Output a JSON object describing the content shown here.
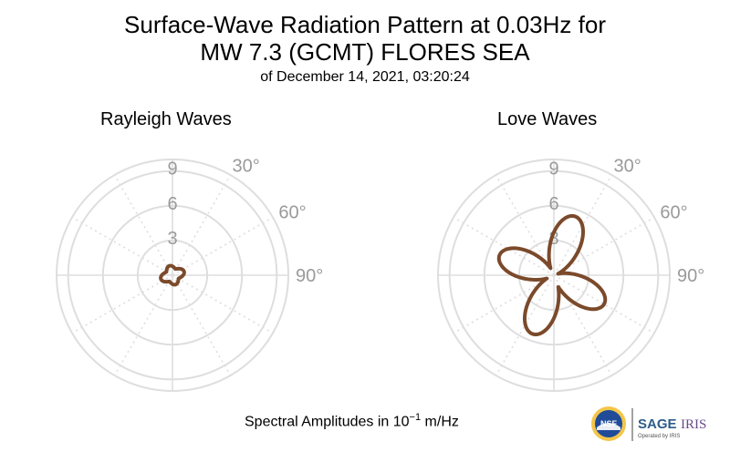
{
  "title": {
    "line1": "Surface-Wave Radiation Pattern at 0.03Hz for",
    "line2": "MW 7.3 (GCMT) FLORES SEA",
    "line3": "of December 14, 2021, 03:20:24"
  },
  "footer": {
    "prefix": "Spectral Amplitudes in 10",
    "exponent": "−1",
    "suffix": " m/Hz"
  },
  "logos": {
    "nsf": "NSF",
    "sage": "SAGE",
    "iris": "IRIS",
    "operated": "Operated by IRIS"
  },
  "colors": {
    "pattern": "#7b4a2b",
    "grid": "#dedede",
    "tick_text": "#9a9a9a"
  },
  "chart_data": [
    {
      "type": "polar",
      "title": "Rayleigh Waves",
      "radial_ticks": [
        "3",
        "6",
        "9"
      ],
      "radial_values": [
        3,
        6,
        9
      ],
      "rmax": 10,
      "angle_ticks": [
        "30°",
        "60°",
        "90°"
      ],
      "angle_values": [
        30,
        60,
        90
      ],
      "lobes": [
        {
          "azimuth_deg": 72,
          "amplitude": 1.05
        },
        {
          "azimuth_deg": 162,
          "amplitude": 0.85
        },
        {
          "azimuth_deg": 252,
          "amplitude": 1.05
        },
        {
          "azimuth_deg": 342,
          "amplitude": 0.85
        }
      ],
      "base_amplitude": 0.55
    },
    {
      "type": "polar",
      "title": "Love Waves",
      "radial_ticks": [
        "3",
        "6",
        "9"
      ],
      "radial_values": [
        3,
        6,
        9
      ],
      "rmax": 10,
      "angle_ticks": [
        "30°",
        "60°",
        "90°"
      ],
      "angle_values": [
        30,
        60,
        90
      ],
      "lobes": [
        {
          "azimuth_deg": 20,
          "amplitude": 5.4
        },
        {
          "azimuth_deg": 120,
          "amplitude": 5.0
        },
        {
          "azimuth_deg": 200,
          "amplitude": 5.4
        },
        {
          "azimuth_deg": 290,
          "amplitude": 5.0
        }
      ],
      "base_amplitude": 0.0
    }
  ]
}
